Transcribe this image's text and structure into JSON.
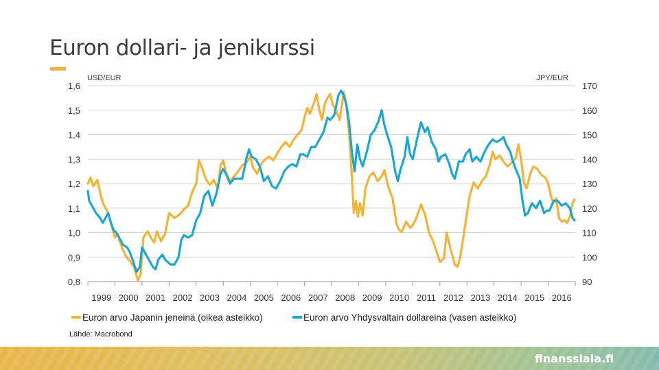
{
  "slide": {
    "title": "Euron dollari- ja jenikurssi",
    "source": "Lähde: Macrobond",
    "brand": "finanssiala.fi"
  },
  "chart_data": {
    "type": "line",
    "left_axis": {
      "unit_label": "USD/EUR",
      "range": [
        0.8,
        1.6
      ],
      "ticks": [
        "0,8",
        "0,9",
        "1,0",
        "1,1",
        "1,2",
        "1,3",
        "1,4",
        "1,5",
        "1,6"
      ]
    },
    "right_axis": {
      "unit_label": "JPY/EUR",
      "range": [
        90,
        170
      ],
      "ticks": [
        "90",
        "100",
        "110",
        "120",
        "130",
        "140",
        "150",
        "160",
        "170"
      ]
    },
    "x_axis": {
      "range": [
        1999.0,
        2017.0
      ],
      "ticks": [
        "1999",
        "2000",
        "2001",
        "2002",
        "2003",
        "2004",
        "2005",
        "2006",
        "2007",
        "2008",
        "2009",
        "2010",
        "2011",
        "2012",
        "2013",
        "2014",
        "2015",
        "2016"
      ]
    },
    "grid": "horizontal",
    "legend_position": "bottom",
    "series": [
      {
        "name": "Euron arvo Japanin jeneinä (oikea asteikko)",
        "axis": "right",
        "color": "#f5b335",
        "points": [
          [
            1999.0,
            130.0
          ],
          [
            1999.1,
            132.5
          ],
          [
            1999.2,
            129.0
          ],
          [
            1999.35,
            131.5
          ],
          [
            1999.5,
            124.0
          ],
          [
            1999.6,
            121.0
          ],
          [
            1999.75,
            118.0
          ],
          [
            1999.9,
            112.0
          ],
          [
            2000.0,
            108.0
          ],
          [
            2000.1,
            109.5
          ],
          [
            2000.25,
            104.0
          ],
          [
            2000.4,
            100.5
          ],
          [
            2000.55,
            98.5
          ],
          [
            2000.7,
            96.0
          ],
          [
            2000.85,
            90.5
          ],
          [
            2000.95,
            93.0
          ],
          [
            2001.05,
            108.0
          ],
          [
            2001.2,
            110.5
          ],
          [
            2001.35,
            107.5
          ],
          [
            2001.45,
            106.0
          ],
          [
            2001.55,
            110.5
          ],
          [
            2001.7,
            106.5
          ],
          [
            2001.85,
            109.5
          ],
          [
            2002.0,
            118.0
          ],
          [
            2002.2,
            116.0
          ],
          [
            2002.4,
            117.5
          ],
          [
            2002.55,
            119.5
          ],
          [
            2002.7,
            121.0
          ],
          [
            2002.85,
            126.5
          ],
          [
            2003.0,
            130.0
          ],
          [
            2003.1,
            139.5
          ],
          [
            2003.2,
            137.0
          ],
          [
            2003.35,
            132.0
          ],
          [
            2003.5,
            129.5
          ],
          [
            2003.65,
            131.5
          ],
          [
            2003.8,
            128.0
          ],
          [
            2003.9,
            137.5
          ],
          [
            2004.0,
            139.5
          ],
          [
            2004.1,
            134.5
          ],
          [
            2004.25,
            131.0
          ],
          [
            2004.4,
            133.0
          ],
          [
            2004.55,
            135.0
          ],
          [
            2004.7,
            137.5
          ],
          [
            2004.85,
            138.5
          ],
          [
            2005.0,
            141.0
          ],
          [
            2005.1,
            136.5
          ],
          [
            2005.25,
            134.0
          ],
          [
            2005.4,
            138.0
          ],
          [
            2005.55,
            140.0
          ],
          [
            2005.7,
            141.0
          ],
          [
            2005.85,
            139.5
          ],
          [
            2006.0,
            142.5
          ],
          [
            2006.15,
            145.0
          ],
          [
            2006.3,
            147.0
          ],
          [
            2006.45,
            145.0
          ],
          [
            2006.6,
            148.0
          ],
          [
            2006.75,
            150.0
          ],
          [
            2006.9,
            152.0
          ],
          [
            2007.0,
            157.0
          ],
          [
            2007.1,
            161.0
          ],
          [
            2007.2,
            158.5
          ],
          [
            2007.35,
            163.0
          ],
          [
            2007.45,
            166.5
          ],
          [
            2007.55,
            160.0
          ],
          [
            2007.65,
            156.0
          ],
          [
            2007.75,
            162.5
          ],
          [
            2007.85,
            165.0
          ],
          [
            2007.95,
            166.5
          ],
          [
            2008.05,
            162.0
          ],
          [
            2008.15,
            160.5
          ],
          [
            2008.3,
            156.0
          ],
          [
            2008.45,
            167.5
          ],
          [
            2008.55,
            162.0
          ],
          [
            2008.65,
            150.0
          ],
          [
            2008.75,
            133.0
          ],
          [
            2008.82,
            118.0
          ],
          [
            2008.9,
            123.0
          ],
          [
            2008.97,
            116.5
          ],
          [
            2009.05,
            122.0
          ],
          [
            2009.15,
            117.0
          ],
          [
            2009.25,
            128.0
          ],
          [
            2009.4,
            133.0
          ],
          [
            2009.55,
            134.5
          ],
          [
            2009.7,
            131.0
          ],
          [
            2009.85,
            133.0
          ],
          [
            2009.95,
            135.5
          ],
          [
            2010.1,
            128.5
          ],
          [
            2010.25,
            124.0
          ],
          [
            2010.4,
            113.5
          ],
          [
            2010.5,
            111.0
          ],
          [
            2010.6,
            110.5
          ],
          [
            2010.75,
            114.5
          ],
          [
            2010.9,
            112.0
          ],
          [
            2011.0,
            113.0
          ],
          [
            2011.15,
            116.5
          ],
          [
            2011.3,
            121.5
          ],
          [
            2011.45,
            117.5
          ],
          [
            2011.6,
            110.0
          ],
          [
            2011.75,
            106.5
          ],
          [
            2011.9,
            101.5
          ],
          [
            2012.0,
            98.0
          ],
          [
            2012.15,
            99.5
          ],
          [
            2012.25,
            110.0
          ],
          [
            2012.4,
            103.0
          ],
          [
            2012.55,
            97.0
          ],
          [
            2012.65,
            96.0
          ],
          [
            2012.75,
            100.0
          ],
          [
            2012.9,
            110.5
          ],
          [
            2013.0,
            118.0
          ],
          [
            2013.1,
            125.0
          ],
          [
            2013.25,
            130.5
          ],
          [
            2013.4,
            128.0
          ],
          [
            2013.55,
            131.0
          ],
          [
            2013.7,
            133.0
          ],
          [
            2013.85,
            138.0
          ],
          [
            2013.95,
            143.0
          ],
          [
            2014.05,
            140.0
          ],
          [
            2014.2,
            141.5
          ],
          [
            2014.35,
            139.0
          ],
          [
            2014.5,
            137.0
          ],
          [
            2014.65,
            138.5
          ],
          [
            2014.8,
            140.5
          ],
          [
            2014.9,
            146.0
          ],
          [
            2015.0,
            140.0
          ],
          [
            2015.1,
            130.5
          ],
          [
            2015.2,
            128.0
          ],
          [
            2015.35,
            134.5
          ],
          [
            2015.45,
            137.0
          ],
          [
            2015.6,
            136.0
          ],
          [
            2015.75,
            133.5
          ],
          [
            2015.9,
            132.5
          ],
          [
            2016.0,
            130.0
          ],
          [
            2016.1,
            125.0
          ],
          [
            2016.2,
            122.0
          ],
          [
            2016.3,
            124.0
          ],
          [
            2016.4,
            116.0
          ],
          [
            2016.5,
            114.5
          ],
          [
            2016.6,
            115.0
          ],
          [
            2016.7,
            114.0
          ],
          [
            2016.8,
            116.5
          ],
          [
            2016.9,
            122.0
          ],
          [
            2016.97,
            123.5
          ]
        ]
      },
      {
        "name": "Euron arvo Yhdysvaltain dollareina (vasen asteikko)",
        "axis": "left",
        "color": "#1aa7d6",
        "points": [
          [
            1999.0,
            1.17
          ],
          [
            1999.05,
            1.13
          ],
          [
            1999.15,
            1.11
          ],
          [
            1999.3,
            1.08
          ],
          [
            1999.45,
            1.06
          ],
          [
            1999.55,
            1.04
          ],
          [
            1999.65,
            1.06
          ],
          [
            1999.75,
            1.08
          ],
          [
            1999.85,
            1.04
          ],
          [
            1999.95,
            1.01
          ],
          [
            2000.05,
            1.0
          ],
          [
            2000.15,
            0.98
          ],
          [
            2000.3,
            0.95
          ],
          [
            2000.45,
            0.94
          ],
          [
            2000.55,
            0.92
          ],
          [
            2000.65,
            0.89
          ],
          [
            2000.8,
            0.84
          ],
          [
            2000.92,
            0.86
          ],
          [
            2001.0,
            0.94
          ],
          [
            2001.1,
            0.92
          ],
          [
            2001.25,
            0.89
          ],
          [
            2001.4,
            0.86
          ],
          [
            2001.5,
            0.85
          ],
          [
            2001.6,
            0.89
          ],
          [
            2001.75,
            0.91
          ],
          [
            2001.85,
            0.89
          ],
          [
            2001.95,
            0.88
          ],
          [
            2002.05,
            0.87
          ],
          [
            2002.2,
            0.87
          ],
          [
            2002.35,
            0.9
          ],
          [
            2002.45,
            0.97
          ],
          [
            2002.55,
            0.99
          ],
          [
            2002.7,
            0.98
          ],
          [
            2002.85,
            0.99
          ],
          [
            2003.0,
            1.05
          ],
          [
            2003.15,
            1.08
          ],
          [
            2003.3,
            1.15
          ],
          [
            2003.45,
            1.17
          ],
          [
            2003.6,
            1.11
          ],
          [
            2003.75,
            1.16
          ],
          [
            2003.9,
            1.24
          ],
          [
            2004.0,
            1.26
          ],
          [
            2004.1,
            1.24
          ],
          [
            2004.25,
            1.2
          ],
          [
            2004.4,
            1.22
          ],
          [
            2004.55,
            1.22
          ],
          [
            2004.7,
            1.22
          ],
          [
            2004.85,
            1.3
          ],
          [
            2004.95,
            1.34
          ],
          [
            2005.05,
            1.31
          ],
          [
            2005.2,
            1.3
          ],
          [
            2005.35,
            1.27
          ],
          [
            2005.5,
            1.21
          ],
          [
            2005.65,
            1.23
          ],
          [
            2005.8,
            1.19
          ],
          [
            2005.95,
            1.18
          ],
          [
            2006.1,
            1.21
          ],
          [
            2006.25,
            1.25
          ],
          [
            2006.4,
            1.27
          ],
          [
            2006.55,
            1.28
          ],
          [
            2006.7,
            1.27
          ],
          [
            2006.85,
            1.32
          ],
          [
            2006.95,
            1.32
          ],
          [
            2007.1,
            1.31
          ],
          [
            2007.25,
            1.35
          ],
          [
            2007.4,
            1.35
          ],
          [
            2007.55,
            1.38
          ],
          [
            2007.7,
            1.41
          ],
          [
            2007.85,
            1.47
          ],
          [
            2007.95,
            1.46
          ],
          [
            2008.1,
            1.48
          ],
          [
            2008.25,
            1.56
          ],
          [
            2008.35,
            1.58
          ],
          [
            2008.45,
            1.56
          ],
          [
            2008.55,
            1.52
          ],
          [
            2008.65,
            1.45
          ],
          [
            2008.75,
            1.33
          ],
          [
            2008.85,
            1.25
          ],
          [
            2008.95,
            1.36
          ],
          [
            2009.05,
            1.3
          ],
          [
            2009.15,
            1.27
          ],
          [
            2009.3,
            1.33
          ],
          [
            2009.45,
            1.4
          ],
          [
            2009.6,
            1.42
          ],
          [
            2009.75,
            1.46
          ],
          [
            2009.85,
            1.5
          ],
          [
            2009.95,
            1.44
          ],
          [
            2010.05,
            1.4
          ],
          [
            2010.2,
            1.35
          ],
          [
            2010.35,
            1.25
          ],
          [
            2010.45,
            1.21
          ],
          [
            2010.55,
            1.26
          ],
          [
            2010.7,
            1.31
          ],
          [
            2010.8,
            1.39
          ],
          [
            2010.9,
            1.32
          ],
          [
            2011.0,
            1.3
          ],
          [
            2011.15,
            1.38
          ],
          [
            2011.3,
            1.45
          ],
          [
            2011.45,
            1.41
          ],
          [
            2011.55,
            1.43
          ],
          [
            2011.7,
            1.37
          ],
          [
            2011.85,
            1.34
          ],
          [
            2011.95,
            1.29
          ],
          [
            2012.05,
            1.31
          ],
          [
            2012.2,
            1.32
          ],
          [
            2012.35,
            1.28
          ],
          [
            2012.45,
            1.24
          ],
          [
            2012.55,
            1.22
          ],
          [
            2012.7,
            1.29
          ],
          [
            2012.85,
            1.29
          ],
          [
            2012.95,
            1.32
          ],
          [
            2013.1,
            1.34
          ],
          [
            2013.2,
            1.29
          ],
          [
            2013.35,
            1.31
          ],
          [
            2013.5,
            1.29
          ],
          [
            2013.65,
            1.33
          ],
          [
            2013.8,
            1.36
          ],
          [
            2013.95,
            1.38
          ],
          [
            2014.1,
            1.37
          ],
          [
            2014.25,
            1.38
          ],
          [
            2014.35,
            1.39
          ],
          [
            2014.45,
            1.36
          ],
          [
            2014.6,
            1.33
          ],
          [
            2014.7,
            1.29
          ],
          [
            2014.8,
            1.26
          ],
          [
            2014.95,
            1.22
          ],
          [
            2015.05,
            1.13
          ],
          [
            2015.15,
            1.07
          ],
          [
            2015.25,
            1.08
          ],
          [
            2015.4,
            1.12
          ],
          [
            2015.55,
            1.1
          ],
          [
            2015.7,
            1.13
          ],
          [
            2015.85,
            1.08
          ],
          [
            2015.95,
            1.09
          ],
          [
            2016.05,
            1.09
          ],
          [
            2016.2,
            1.13
          ],
          [
            2016.35,
            1.13
          ],
          [
            2016.5,
            1.11
          ],
          [
            2016.65,
            1.12
          ],
          [
            2016.8,
            1.1
          ],
          [
            2016.9,
            1.06
          ],
          [
            2016.97,
            1.05
          ]
        ]
      }
    ]
  }
}
